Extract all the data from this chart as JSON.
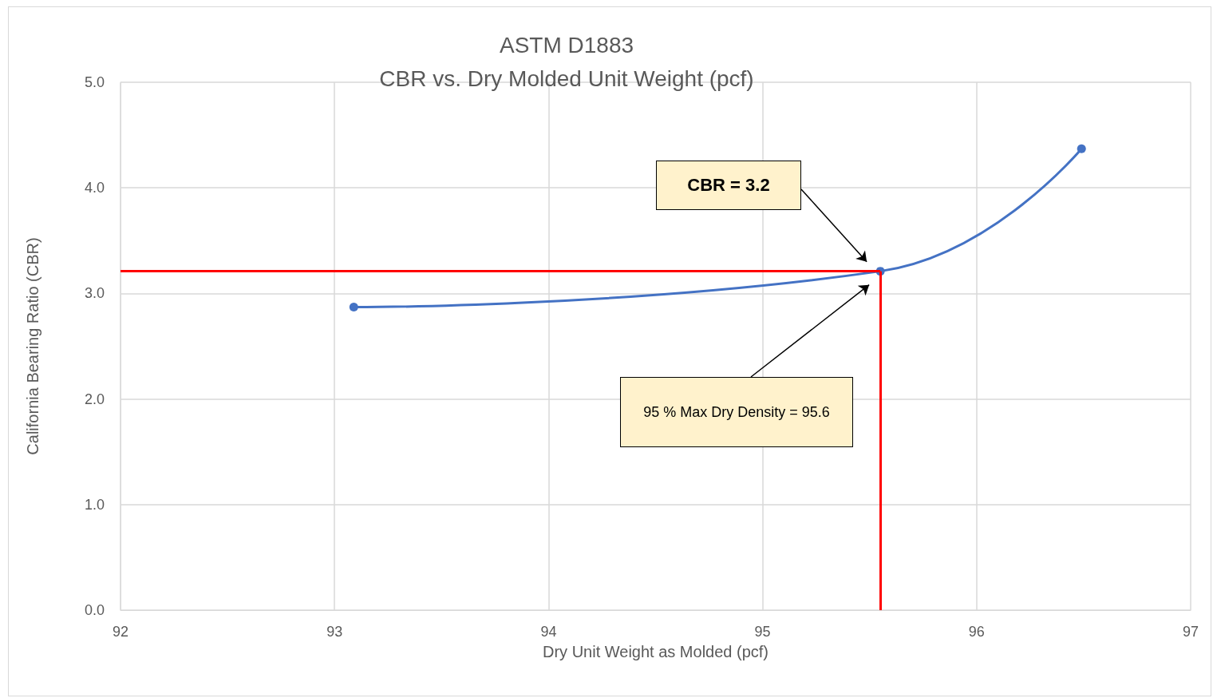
{
  "chart_data": {
    "type": "line",
    "title": "ASTM D1883",
    "subtitle": "CBR vs. Dry Molded Unit Weight (pcf)",
    "xlabel": "Dry Unit Weight as Molded (pcf)",
    "ylabel": "California Bearing Ratio (CBR)",
    "x": [
      93.09,
      95.55,
      96.49
    ],
    "series": [
      {
        "color": "#4472c4",
        "values": [
          2.87,
          3.21,
          4.37
        ]
      }
    ],
    "xlim": [
      92,
      97
    ],
    "xticks": [
      92,
      93,
      94,
      95,
      96,
      97
    ],
    "ylim": [
      0,
      5
    ],
    "yticks": [
      {
        "value": 0,
        "label": "0.0"
      },
      {
        "value": 1,
        "label": "1.0"
      },
      {
        "value": 2,
        "label": "2.0"
      },
      {
        "value": 3,
        "label": "3.0"
      },
      {
        "value": 4,
        "label": "4.0"
      },
      {
        "value": 5,
        "label": "5.0"
      }
    ],
    "grid": true,
    "marker": "circle",
    "line_style": "solid",
    "ref_lines": [
      {
        "axis": "y",
        "value": 3.21,
        "color": "#ff0000"
      },
      {
        "axis": "x",
        "value": 95.55,
        "color": "#ff0000"
      }
    ],
    "annotations": [
      "CBR = 3.2",
      "95 % Max Dry Density = 95.6"
    ]
  }
}
